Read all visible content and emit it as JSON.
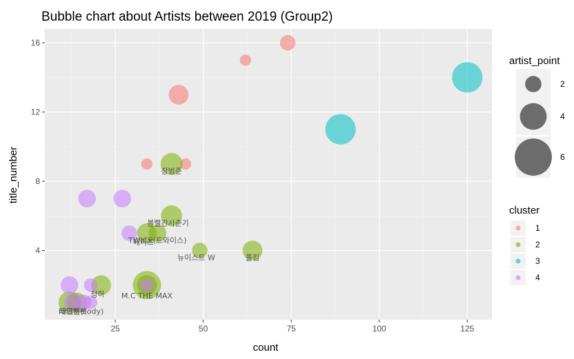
{
  "chart_data": {
    "type": "scatter",
    "title": "Bubble chart about Artists between 2019 (Group2)",
    "xlabel": "count",
    "ylabel": "title_number",
    "xlim": [
      5,
      132
    ],
    "ylim": [
      0,
      16.8
    ],
    "x_ticks": [
      25,
      50,
      75,
      100,
      125
    ],
    "y_ticks": [
      4,
      8,
      12,
      16
    ],
    "grid": true,
    "legend_size": {
      "title": "artist_point",
      "entries": [
        {
          "label": "2",
          "size": 2
        },
        {
          "label": "4",
          "size": 4
        },
        {
          "label": "6",
          "size": 6
        }
      ]
    },
    "legend_color": {
      "title": "cluster",
      "entries": [
        {
          "label": "1",
          "color": "#F8766D"
        },
        {
          "label": "2",
          "color": "#7CAE00"
        },
        {
          "label": "3",
          "color": "#00BFC4"
        },
        {
          "label": "4",
          "color": "#C77CFF"
        }
      ]
    },
    "points": [
      {
        "x": 74,
        "y": 16,
        "size": 2.5,
        "cluster": 1
      },
      {
        "x": 62,
        "y": 15,
        "size": 1.5,
        "cluster": 1
      },
      {
        "x": 43,
        "y": 13,
        "size": 3.5,
        "cluster": 1
      },
      {
        "x": 34,
        "y": 9,
        "size": 1.5,
        "cluster": 1
      },
      {
        "x": 45,
        "y": 9,
        "size": 1.5,
        "cluster": 1
      },
      {
        "x": 125,
        "y": 14,
        "size": 6,
        "cluster": 3
      },
      {
        "x": 89,
        "y": 11,
        "size": 6,
        "cluster": 3
      },
      {
        "x": 41,
        "y": 9,
        "size": 4,
        "cluster": 2
      },
      {
        "x": 41,
        "y": 6,
        "size": 3.8,
        "cluster": 2
      },
      {
        "x": 34,
        "y": 5,
        "size": 3.5,
        "cluster": 2
      },
      {
        "x": 37,
        "y": 5,
        "size": 3,
        "cluster": 2
      },
      {
        "x": 49,
        "y": 4,
        "size": 2.5,
        "cluster": 2
      },
      {
        "x": 64,
        "y": 4,
        "size": 3.5,
        "cluster": 2
      },
      {
        "x": 21,
        "y": 2,
        "size": 3.5,
        "cluster": 2
      },
      {
        "x": 34,
        "y": 2,
        "size": 5.5,
        "cluster": 2
      },
      {
        "x": 34,
        "y": 2,
        "size": 3.5,
        "cluster": 2
      },
      {
        "x": 12,
        "y": 1,
        "size": 4,
        "cluster": 2
      },
      {
        "x": 14,
        "y": 1,
        "size": 3.5,
        "cluster": 2
      },
      {
        "x": 17,
        "y": 7,
        "size": 3,
        "cluster": 4
      },
      {
        "x": 27,
        "y": 7,
        "size": 3,
        "cluster": 4
      },
      {
        "x": 29,
        "y": 5,
        "size": 2.5,
        "cluster": 4
      },
      {
        "x": 12,
        "y": 2,
        "size": 3,
        "cluster": 4
      },
      {
        "x": 18,
        "y": 2,
        "size": 2,
        "cluster": 4
      },
      {
        "x": 34,
        "y": 2,
        "size": 2,
        "cluster": 4
      },
      {
        "x": 13,
        "y": 1,
        "size": 3,
        "cluster": 4
      },
      {
        "x": 16,
        "y": 1,
        "size": 2.5,
        "cluster": 4
      },
      {
        "x": 18,
        "y": 1,
        "size": 2,
        "cluster": 4
      }
    ],
    "labels": [
      {
        "text": "장범준",
        "x": 41,
        "y": 8.6
      },
      {
        "text": "볼빨간사춘기",
        "x": 40,
        "y": 5.6
      },
      {
        "text": "TWICE(트와이스)",
        "x": 37,
        "y": 4.6
      },
      {
        "text": "헤이즈",
        "x": 33,
        "y": 4.5
      },
      {
        "text": "뉴이스트 W",
        "x": 48,
        "y": 3.6
      },
      {
        "text": "폴킴",
        "x": 64,
        "y": 3.6
      },
      {
        "text": "청하",
        "x": 20,
        "y": 1.5
      },
      {
        "text": "M.C THE MAX",
        "x": 34,
        "y": 1.4
      },
      {
        "text": "태연",
        "x": 11,
        "y": 0.5
      },
      {
        "text": "IU",
        "x": 10,
        "y": 0.5
      },
      {
        "text": "레드벨벳",
        "x": 13,
        "y": 0.5
      },
      {
        "text": "(Melody)",
        "x": 17,
        "y": 0.5
      }
    ]
  }
}
